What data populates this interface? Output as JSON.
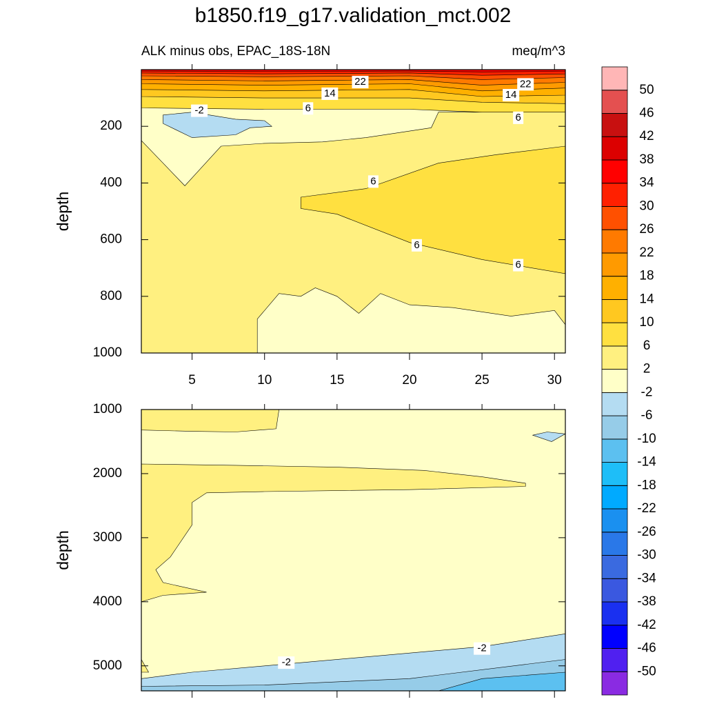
{
  "title": "b1850.f19_g17.validation_mct.002",
  "colorbar": {
    "levels": [
      -50,
      -46,
      -42,
      -38,
      -34,
      -30,
      -26,
      -22,
      -18,
      -14,
      -10,
      -6,
      -2,
      2,
      6,
      10,
      14,
      18,
      22,
      26,
      30,
      34,
      38,
      42,
      46,
      50
    ],
    "colors": [
      "#8a2be2",
      "#5020f0",
      "#0000ff",
      "#1a30f0",
      "#3a58e0",
      "#3a6ae0",
      "#2a78e8",
      "#1a90f0",
      "#00aaff",
      "#1ebef8",
      "#5cc0f0",
      "#96cce8",
      "#b4dcf2",
      "#ffffc8",
      "#fff080",
      "#ffe040",
      "#ffc820",
      "#ffb000",
      "#ff9a00",
      "#ff7a00",
      "#ff5000",
      "#ff2000",
      "#ff0000",
      "#dc0000",
      "#c81010",
      "#e45050",
      "#ffb6b6"
    ]
  },
  "chart_data": [
    {
      "type": "contour",
      "subtitle_left": "ALK minus obs, EPAC_18S-18N",
      "subtitle_right": "meq/m^3",
      "ylabel": "depth",
      "xlim": [
        1.5,
        30.75
      ],
      "ylim": [
        0,
        1000
      ],
      "y_reversed": true,
      "xticks": [
        5,
        10,
        15,
        20,
        25,
        30
      ],
      "yticks": [
        200,
        400,
        600,
        800,
        1000
      ],
      "xtick_labels": true,
      "regions": [
        {
          "level": 2,
          "x": [
            1.5,
            30.75,
            30.75,
            1.5
          ],
          "depth": [
            0,
            0,
            1000,
            1000
          ]
        },
        {
          "level": -2,
          "x": [
            1.5,
            30.75,
            30.75,
            22,
            21.5,
            17,
            14,
            10,
            7,
            4.5,
            3,
            1.5
          ],
          "depth": [
            100,
            100,
            150,
            150,
            205,
            240,
            255,
            260,
            270,
            410,
            330,
            250
          ]
        },
        {
          "level": -6,
          "x": [
            3,
            5,
            8,
            10,
            10.5,
            9,
            8,
            5,
            3
          ],
          "depth": [
            160,
            150,
            175,
            180,
            200,
            205,
            230,
            240,
            190
          ]
        },
        {
          "level": 6,
          "x": [
            12.5,
            17,
            22,
            26,
            30.75,
            30.75,
            25,
            20,
            15,
            12.5
          ],
          "depth": [
            450,
            420,
            330,
            300,
            270,
            720,
            670,
            610,
            510,
            490
          ]
        },
        {
          "level": -2,
          "x": [
            9.5,
            11,
            12.5,
            13.5,
            15,
            16.5,
            18,
            20,
            23,
            27,
            30,
            30.75,
            30.75,
            9.5
          ],
          "depth": [
            880,
            790,
            800,
            770,
            800,
            860,
            790,
            830,
            840,
            870,
            850,
            900,
            1000,
            1000
          ]
        },
        {
          "level": 6,
          "x": [
            1.5,
            10,
            20,
            25,
            30.75,
            30.75,
            1.5
          ],
          "depth": [
            135,
            140,
            140,
            150,
            150,
            0,
            0
          ]
        },
        {
          "level": 10,
          "x": [
            1.5,
            10,
            20,
            25,
            30.75,
            30.75,
            1.5
          ],
          "depth": [
            95,
            100,
            100,
            115,
            120,
            0,
            0
          ]
        },
        {
          "level": 14,
          "x": [
            1.5,
            10,
            20,
            25,
            30.75,
            30.75,
            1.5
          ],
          "depth": [
            70,
            75,
            70,
            95,
            90,
            0,
            0
          ]
        },
        {
          "level": 18,
          "x": [
            1.5,
            10,
            20,
            25,
            30.75,
            30.75,
            1.5
          ],
          "depth": [
            50,
            55,
            50,
            75,
            65,
            0,
            0
          ]
        },
        {
          "level": 22,
          "x": [
            1.5,
            10,
            20,
            25,
            30.75,
            30.75,
            1.5
          ],
          "depth": [
            35,
            40,
            35,
            55,
            45,
            0,
            0
          ]
        },
        {
          "level": 26,
          "x": [
            1.5,
            10,
            20,
            25,
            30.75,
            30.75,
            1.5
          ],
          "depth": [
            22,
            25,
            22,
            35,
            28,
            0,
            0
          ]
        },
        {
          "level": 30,
          "x": [
            1.5,
            10,
            20,
            25,
            30.75,
            30.75,
            1.5
          ],
          "depth": [
            12,
            15,
            12,
            20,
            15,
            0,
            0
          ]
        },
        {
          "level": 34,
          "x": [
            1.5,
            10,
            20,
            25,
            30.75,
            30.75,
            1.5
          ],
          "depth": [
            5,
            6,
            5,
            8,
            6,
            0,
            0
          ]
        }
      ],
      "contour_labels": [
        {
          "value": 22,
          "x": 16.6,
          "depth": 44
        },
        {
          "value": 14,
          "x": 14.5,
          "depth": 85
        },
        {
          "value": 6,
          "x": 13,
          "depth": 137
        },
        {
          "value": -2,
          "x": 5.5,
          "depth": 145
        },
        {
          "value": 22,
          "x": 28,
          "depth": 52
        },
        {
          "value": 14,
          "x": 27,
          "depth": 90
        },
        {
          "value": 6,
          "x": 27.5,
          "depth": 170
        },
        {
          "value": 6,
          "x": 17.5,
          "depth": 395
        },
        {
          "value": 6,
          "x": 20.5,
          "depth": 620
        },
        {
          "value": 6,
          "x": 27.5,
          "depth": 690
        }
      ]
    },
    {
      "type": "contour",
      "ylabel": "depth",
      "xlim": [
        1.5,
        30.75
      ],
      "ylim": [
        1000,
        5390
      ],
      "y_reversed": true,
      "xticks": [
        5,
        10,
        15,
        20,
        25,
        30
      ],
      "yticks": [
        1000,
        2000,
        3000,
        4000,
        5000
      ],
      "xtick_labels": false,
      "regions": [
        {
          "level": -2,
          "x": [
            1.5,
            30.75,
            30.75,
            1.5
          ],
          "depth": [
            1000,
            1000,
            5390,
            5390
          ]
        },
        {
          "level": 2,
          "x": [
            1.5,
            11,
            10.8,
            8,
            5,
            1.5
          ],
          "depth": [
            1000,
            1000,
            1300,
            1350,
            1340,
            1320
          ]
        },
        {
          "level": 2,
          "x": [
            1.5,
            8,
            15,
            21,
            25,
            28,
            28,
            20,
            10,
            6,
            5,
            5,
            3.5,
            2.5,
            3,
            6,
            3,
            1.5
          ],
          "depth": [
            1850,
            1870,
            1900,
            1950,
            2050,
            2150,
            2200,
            2250,
            2280,
            2300,
            2450,
            2800,
            3300,
            3500,
            3700,
            3850,
            3900,
            4000
          ]
        },
        {
          "level": 2,
          "x": [
            1.5,
            1.5,
            2
          ],
          "depth": [
            4900,
            5100,
            5100
          ]
        },
        {
          "level": -6,
          "x": [
            28.5,
            29.5,
            30.75,
            29.8
          ],
          "depth": [
            1400,
            1350,
            1380,
            1500
          ]
        },
        {
          "level": -6,
          "x": [
            1.5,
            5,
            10,
            20,
            25,
            30.75,
            30.75,
            1.5
          ],
          "depth": [
            5200,
            5100,
            5000,
            4800,
            4700,
            4500,
            5390,
            5390
          ]
        },
        {
          "level": -10,
          "x": [
            1.5,
            10,
            20,
            30.75,
            30.75,
            1.5
          ],
          "depth": [
            5320,
            5300,
            5200,
            4900,
            5390,
            5390
          ]
        },
        {
          "level": -14,
          "x": [
            22,
            25,
            30.75,
            30.75
          ],
          "depth": [
            5390,
            5200,
            5100,
            5390
          ]
        }
      ],
      "contour_labels": [
        {
          "value": -2,
          "x": 11.5,
          "depth": 4950
        },
        {
          "value": -2,
          "x": 25,
          "depth": 4730
        }
      ]
    }
  ]
}
